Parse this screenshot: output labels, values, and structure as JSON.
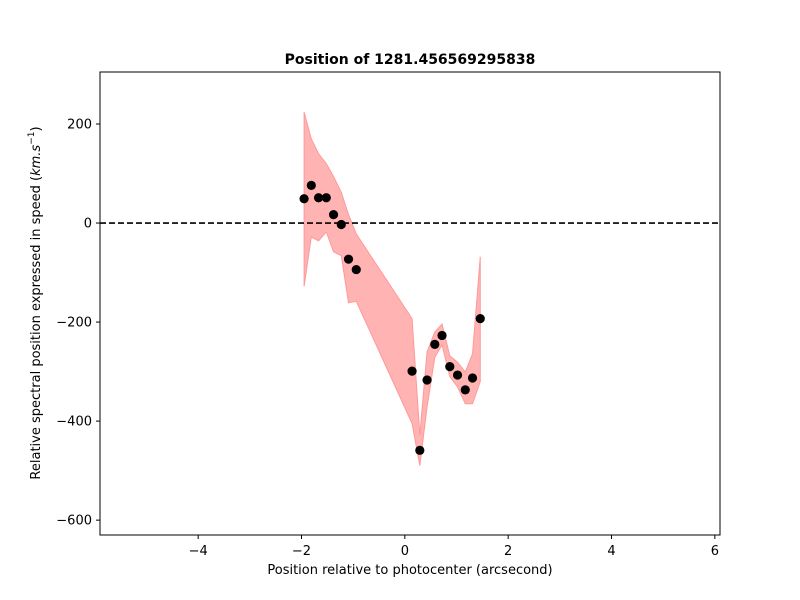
{
  "chart_data": {
    "type": "scatter",
    "title": "Position of 1281.456569295838",
    "xlabel": "Position relative to photocenter (arcsecond)",
    "ylabel_main": "Relative spectral position expressed in speed (",
    "ylabel_unit": "km.s",
    "ylabel_sup": "−1",
    "ylabel_close": ")",
    "xlim": [
      -5.9,
      6.1
    ],
    "ylim": [
      -630,
      305
    ],
    "xticks": [
      -4,
      -2,
      0,
      2,
      4,
      6
    ],
    "yticks": [
      200,
      0,
      -200,
      -400,
      -600
    ],
    "xtick_labels": [
      "−4",
      "−2",
      "0",
      "2",
      "4",
      "6"
    ],
    "ytick_labels": [
      "200",
      "0",
      "−200",
      "−400",
      "−600"
    ],
    "grid": false,
    "reference_line": {
      "y": 0,
      "style": "dashed",
      "color": "#000000"
    },
    "points": {
      "color": "#000000",
      "x": [
        -1.95,
        -1.81,
        -1.67,
        -1.52,
        -1.38,
        -1.23,
        -1.09,
        -0.94,
        0.14,
        0.29,
        0.43,
        0.58,
        0.72,
        0.87,
        1.02,
        1.17,
        1.31,
        1.46
      ],
      "y": [
        49,
        76,
        51,
        51,
        17,
        -3,
        -73,
        -94,
        -299,
        -459,
        -317,
        -245,
        -227,
        -290,
        -307,
        -337,
        -313,
        -193
      ]
    },
    "band": {
      "color": "#ff9999",
      "x": [
        -1.95,
        -1.81,
        -1.67,
        -1.52,
        -1.38,
        -1.23,
        -1.09,
        -0.94,
        0.14,
        0.29,
        0.43,
        0.58,
        0.72,
        0.87,
        1.02,
        1.17,
        1.31,
        1.46
      ],
      "upper": [
        224,
        170,
        140,
        120,
        94,
        62,
        17,
        -22,
        -193,
        -428,
        -260,
        -220,
        -204,
        -268,
        -281,
        -301,
        -264,
        -68
      ],
      "lower": [
        -128,
        -28,
        -36,
        -18,
        -58,
        -66,
        -161,
        -158,
        -405,
        -490,
        -372,
        -271,
        -246,
        -310,
        -331,
        -365,
        -365,
        -320
      ]
    }
  }
}
